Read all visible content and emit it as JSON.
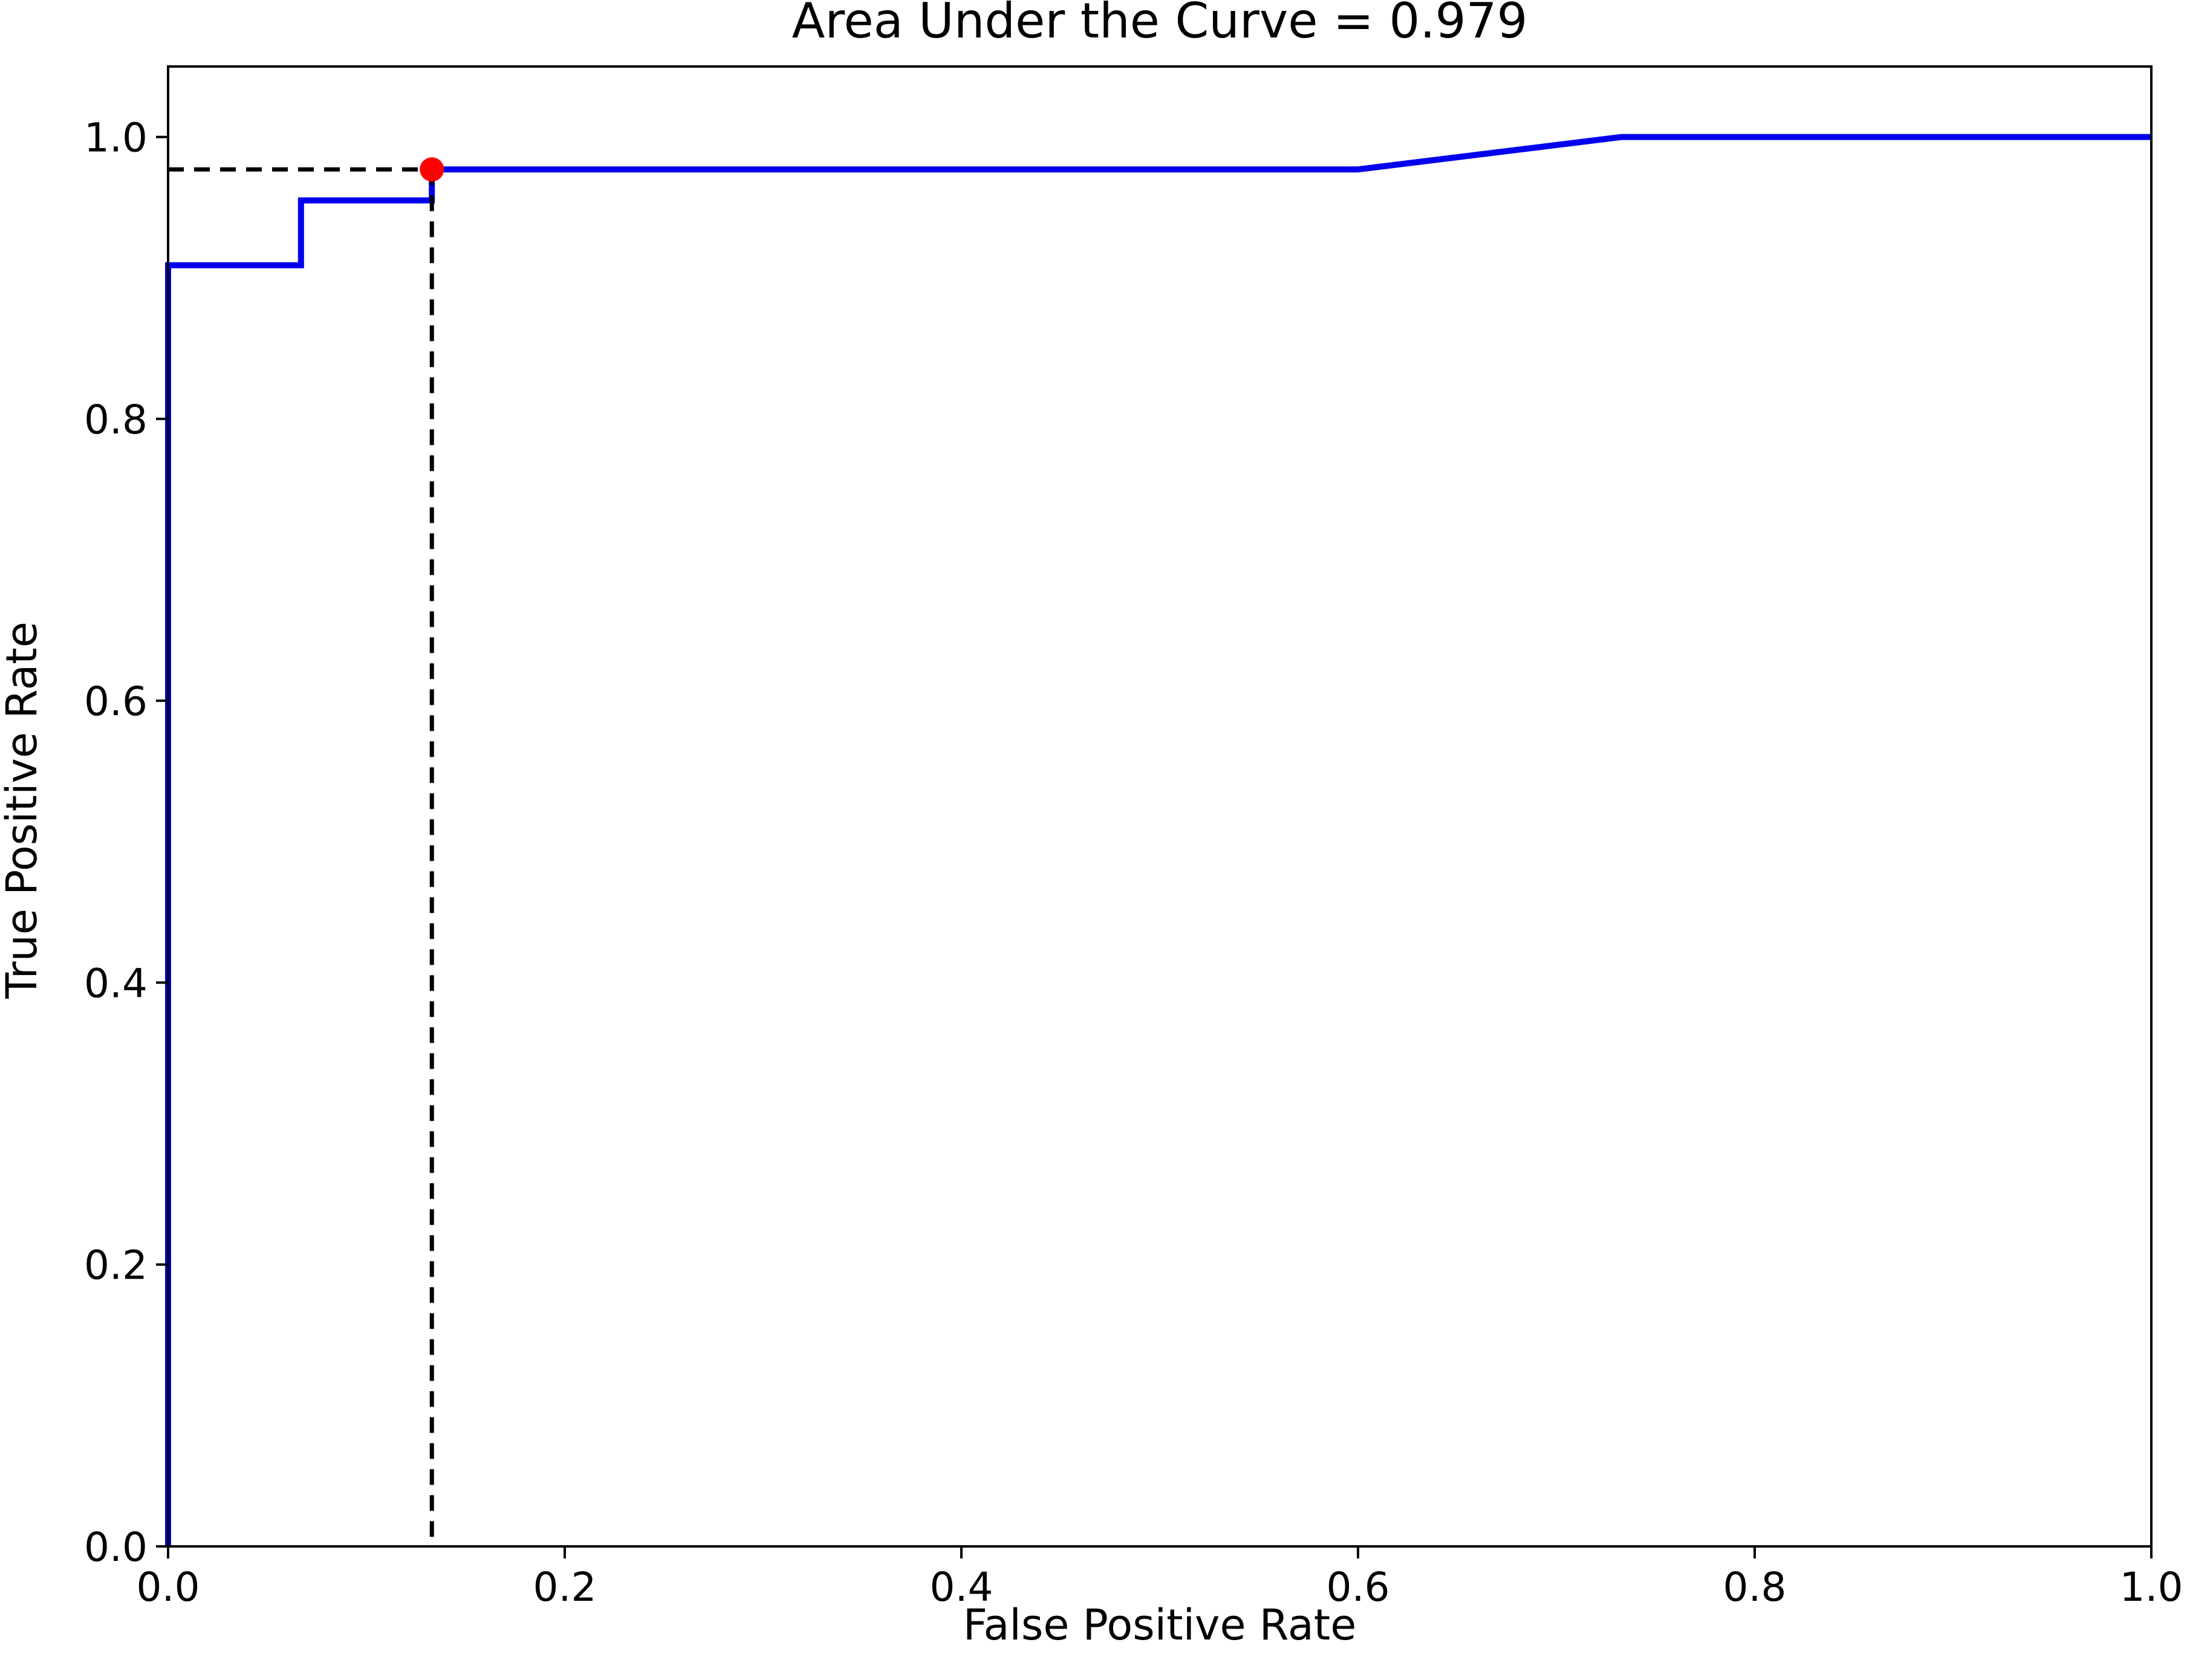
{
  "chart_data": {
    "type": "line",
    "title": "Area Under the Curve = 0.979",
    "xlabel": "False Positive Rate",
    "ylabel": "True Positive Rate",
    "xlim": [
      0,
      1
    ],
    "ylim": [
      0,
      1.05
    ],
    "xticks": [
      0.0,
      0.2,
      0.4,
      0.6,
      0.8,
      1.0
    ],
    "xtick_labels": [
      "0.0",
      "0.2",
      "0.4",
      "0.6",
      "0.8",
      "1.0"
    ],
    "yticks": [
      0.0,
      0.2,
      0.4,
      0.6,
      0.8,
      1.0
    ],
    "ytick_labels": [
      "0.0",
      "0.2",
      "0.4",
      "0.6",
      "0.8",
      "1.0"
    ],
    "grid": false,
    "legend": "none",
    "series": [
      {
        "color": "#0000ee",
        "style": "solid",
        "x": [
          0.0,
          0.0,
          0.067,
          0.067,
          0.133,
          0.133,
          0.6,
          0.733,
          1.0
        ],
        "y": [
          0.0,
          0.909,
          0.909,
          0.955,
          0.955,
          0.977,
          0.977,
          1.0,
          1.0
        ]
      }
    ],
    "optimal_point": {
      "x": 0.133,
      "y": 0.977,
      "color": "#ff0000"
    },
    "reference_lines": {
      "color": "#000000",
      "style": "dashed"
    }
  }
}
